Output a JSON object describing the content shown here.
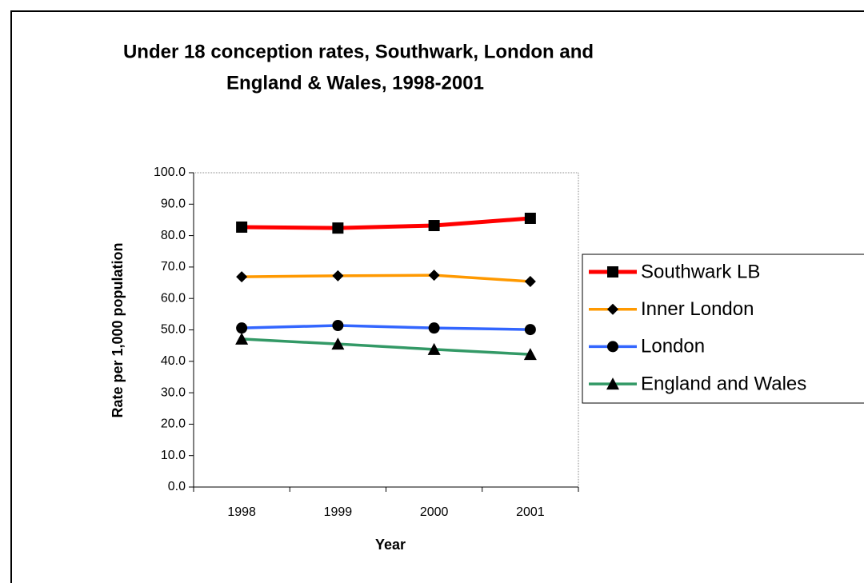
{
  "chart_data": {
    "type": "line",
    "title": [
      "Under 18 conception rates, Southwark, London and",
      "England & Wales, 1998-2001"
    ],
    "x_label": "Year",
    "y_label": "Rate per 1,000 population",
    "categories": [
      "1998",
      "1999",
      "2000",
      "2001"
    ],
    "series": [
      {
        "name": "Southwark LB",
        "color": "#ff0000",
        "marker": "square",
        "values": [
          82.7,
          82.4,
          83.2,
          85.5
        ]
      },
      {
        "name": "Inner London",
        "color": "#ff9900",
        "marker": "diamond",
        "values": [
          66.9,
          67.2,
          67.4,
          65.4
        ]
      },
      {
        "name": "London",
        "color": "#3366ff",
        "marker": "circle",
        "values": [
          50.6,
          51.4,
          50.6,
          50.1
        ]
      },
      {
        "name": "England and Wales",
        "color": "#339966",
        "marker": "triangle",
        "values": [
          47.1,
          45.5,
          43.8,
          42.2
        ]
      }
    ],
    "ylim": [
      0,
      100
    ],
    "yticks": [
      {
        "value": 0,
        "label": "0.0"
      },
      {
        "value": 10,
        "label": "10.0"
      },
      {
        "value": 20,
        "label": "20.0"
      },
      {
        "value": 30,
        "label": "30.0"
      },
      {
        "value": 40,
        "label": "40.0"
      },
      {
        "value": 50,
        "label": "50.0"
      },
      {
        "value": 60,
        "label": "60.0"
      },
      {
        "value": 70,
        "label": "70.0"
      },
      {
        "value": 80,
        "label": "80.0"
      },
      {
        "value": 90,
        "label": "90.0"
      },
      {
        "value": 100,
        "label": "100.0"
      }
    ],
    "legend": "right"
  }
}
